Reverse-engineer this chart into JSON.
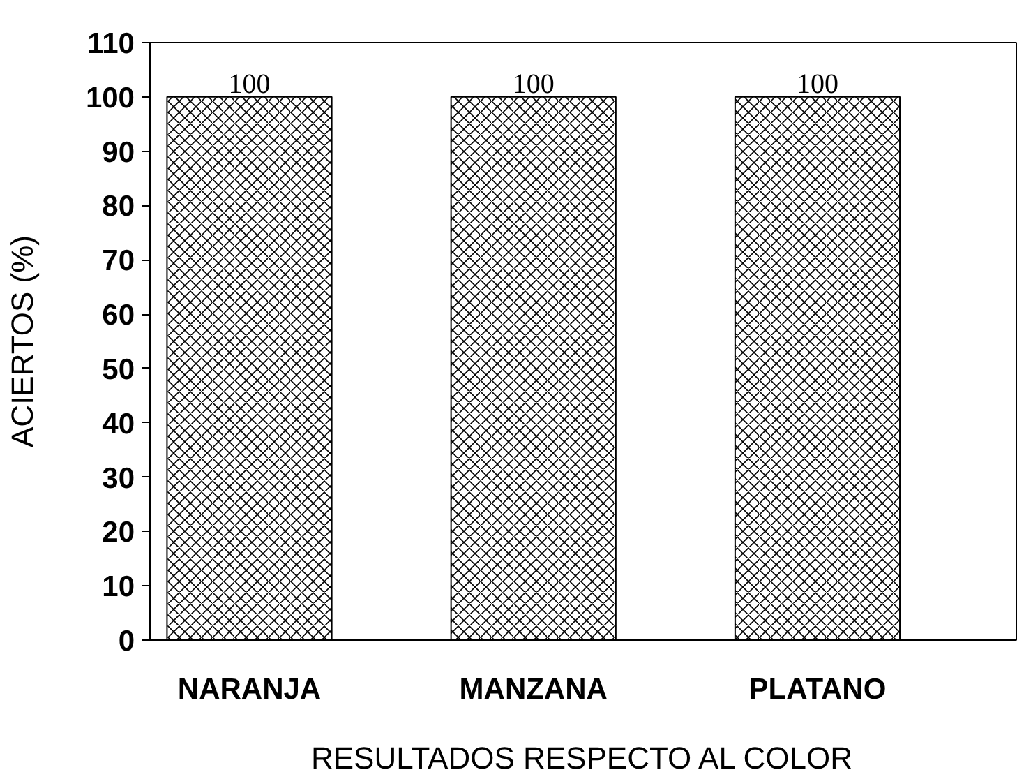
{
  "chart_data": {
    "type": "bar",
    "categories": [
      "NARANJA",
      "MANZANA",
      "PLATANO"
    ],
    "values": [
      100,
      100,
      100
    ],
    "color": "#000000",
    "xlabel": "RESULTADOS RESPECTO AL COLOR",
    "ylabel": "ACIERTOS (%)",
    "ylim": [
      0,
      110
    ],
    "yticks": [
      0,
      10,
      20,
      30,
      40,
      50,
      60,
      70,
      80,
      90,
      100,
      110
    ],
    "data_labels": true,
    "grid": false
  }
}
